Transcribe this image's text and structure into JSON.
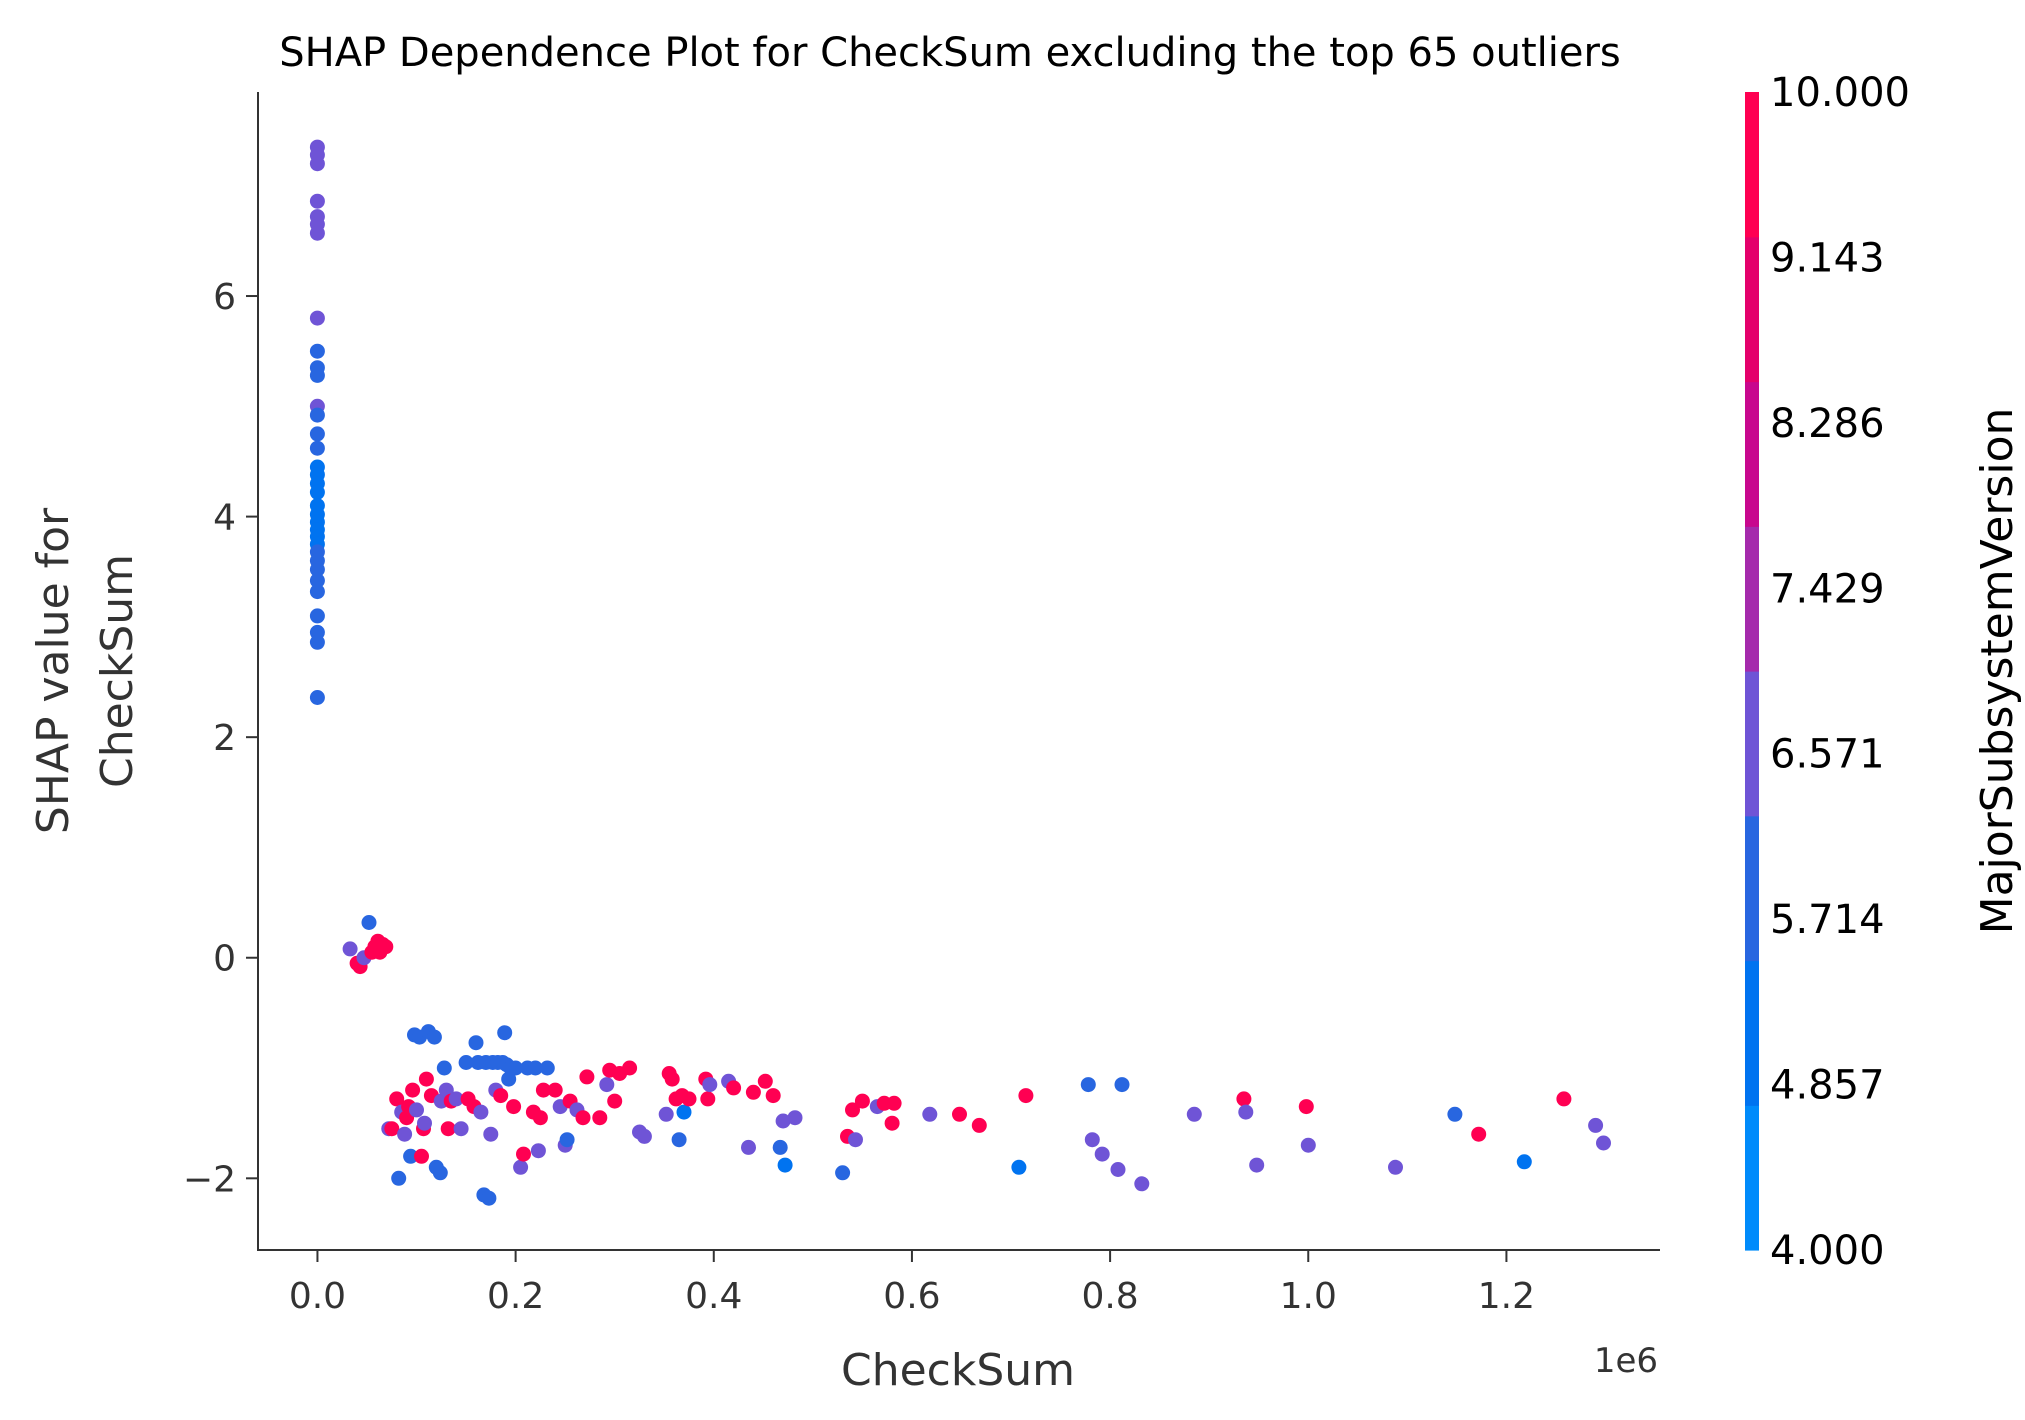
{
  "chart_data": {
    "type": "scatter",
    "title": "SHAP Dependence Plot for CheckSum excluding the top 65 outliers",
    "xlabel": "CheckSum",
    "ylabel_lines": [
      "SHAP value for",
      "CheckSum"
    ],
    "x_offset_label": "1e6",
    "x_scale": 1000000,
    "xlim": [
      -60000,
      1355000
    ],
    "ylim": [
      -2.65,
      7.85
    ],
    "xticks": [
      0.0,
      0.2,
      0.4,
      0.6,
      0.8,
      1.0,
      1.2
    ],
    "xtick_labels": [
      "0.0",
      "0.2",
      "0.4",
      "0.6",
      "0.8",
      "1.0",
      "1.2"
    ],
    "yticks": [
      -2,
      0,
      2,
      4,
      6
    ],
    "ytick_labels": [
      "−2",
      "0",
      "2",
      "4",
      "6"
    ],
    "grid": false,
    "colorbar": {
      "title": "MajorSubsystemVersion",
      "min": 4.0,
      "max": 10.0,
      "ticks": [
        "4.000",
        "4.857",
        "5.714",
        "6.571",
        "7.429",
        "8.286",
        "9.143",
        "10.000"
      ],
      "colors": [
        "#008bfb",
        "#0073f0",
        "#2866e0",
        "#6f54d6",
        "#a52aac",
        "#c8078e",
        "#e4006b",
        "#ff0052"
      ]
    },
    "points": [
      [
        0,
        7.35,
        6.57
      ],
      [
        0,
        7.28,
        6.57
      ],
      [
        0,
        7.2,
        6.57
      ],
      [
        0,
        6.86,
        6.57
      ],
      [
        0,
        6.72,
        6.57
      ],
      [
        0,
        6.65,
        6.57
      ],
      [
        0,
        6.57,
        6.57
      ],
      [
        0,
        5.8,
        6.57
      ],
      [
        0,
        5.5,
        5.71
      ],
      [
        0,
        5.35,
        5.71
      ],
      [
        0,
        5.28,
        5.71
      ],
      [
        0,
        5.0,
        6.57
      ],
      [
        0,
        4.92,
        5.71
      ],
      [
        0,
        4.75,
        5.71
      ],
      [
        0,
        4.62,
        5.71
      ],
      [
        0,
        4.45,
        4.86
      ],
      [
        0,
        4.38,
        4.86
      ],
      [
        0,
        4.3,
        4.86
      ],
      [
        0,
        4.22,
        4.86
      ],
      [
        0,
        4.1,
        4.86
      ],
      [
        0,
        4.02,
        4.86
      ],
      [
        0,
        3.95,
        4.86
      ],
      [
        0,
        3.88,
        4.86
      ],
      [
        0,
        3.82,
        4.86
      ],
      [
        0,
        3.75,
        4.86
      ],
      [
        0,
        3.68,
        5.71
      ],
      [
        0,
        3.6,
        5.71
      ],
      [
        0,
        3.52,
        5.71
      ],
      [
        0,
        3.42,
        5.71
      ],
      [
        0,
        3.32,
        5.71
      ],
      [
        0,
        3.1,
        5.71
      ],
      [
        0,
        2.95,
        5.71
      ],
      [
        0,
        2.86,
        5.71
      ],
      [
        0,
        2.36,
        5.71
      ],
      [
        33000,
        0.08,
        6.57
      ],
      [
        40000,
        -0.05,
        10
      ],
      [
        43000,
        -0.08,
        10
      ],
      [
        47000,
        0.0,
        6.57
      ],
      [
        52000,
        0.32,
        5.71
      ],
      [
        55000,
        0.05,
        10
      ],
      [
        58000,
        0.1,
        10
      ],
      [
        61000,
        0.15,
        10
      ],
      [
        63000,
        0.05,
        10
      ],
      [
        66000,
        0.12,
        10
      ],
      [
        69000,
        0.1,
        10
      ],
      [
        72000,
        -1.55,
        6.57
      ],
      [
        75000,
        -1.55,
        10
      ],
      [
        80000,
        -1.28,
        10
      ],
      [
        82000,
        -2.0,
        5.71
      ],
      [
        85000,
        -1.4,
        6.57
      ],
      [
        88000,
        -1.6,
        6.57
      ],
      [
        90000,
        -1.45,
        10
      ],
      [
        92000,
        -1.35,
        10
      ],
      [
        94000,
        -1.8,
        5.71
      ],
      [
        96000,
        -1.2,
        10
      ],
      [
        98000,
        -0.7,
        5.71
      ],
      [
        100000,
        -1.38,
        6.57
      ],
      [
        103000,
        -0.72,
        5.71
      ],
      [
        105000,
        -1.8,
        10
      ],
      [
        107000,
        -1.55,
        10
      ],
      [
        108000,
        -1.5,
        6.57
      ],
      [
        110000,
        -1.1,
        10
      ],
      [
        112000,
        -0.67,
        5.71
      ],
      [
        115000,
        -1.25,
        10
      ],
      [
        118000,
        -0.72,
        5.71
      ],
      [
        120000,
        -1.9,
        5.71
      ],
      [
        124000,
        -1.95,
        5.71
      ],
      [
        125000,
        -1.3,
        6.57
      ],
      [
        128000,
        -1.0,
        5.71
      ],
      [
        130000,
        -1.2,
        6.57
      ],
      [
        132000,
        -1.55,
        10
      ],
      [
        135000,
        -1.3,
        10
      ],
      [
        140000,
        -1.28,
        6.57
      ],
      [
        145000,
        -1.55,
        6.57
      ],
      [
        150000,
        -0.95,
        5.71
      ],
      [
        152000,
        -1.28,
        10
      ],
      [
        158000,
        -1.35,
        10
      ],
      [
        160000,
        -0.77,
        5.71
      ],
      [
        162000,
        -0.95,
        5.71
      ],
      [
        165000,
        -1.4,
        6.57
      ],
      [
        168000,
        -2.15,
        5.71
      ],
      [
        170000,
        -0.95,
        5.71
      ],
      [
        173000,
        -2.18,
        5.71
      ],
      [
        175000,
        -1.6,
        6.57
      ],
      [
        177000,
        -0.95,
        5.71
      ],
      [
        180000,
        -1.2,
        6.57
      ],
      [
        182000,
        -0.95,
        5.71
      ],
      [
        185000,
        -1.25,
        10
      ],
      [
        187000,
        -0.95,
        5.71
      ],
      [
        189000,
        -0.68,
        5.71
      ],
      [
        191000,
        -0.97,
        5.71
      ],
      [
        193000,
        -1.1,
        5.71
      ],
      [
        195000,
        -1.0,
        5.71
      ],
      [
        198000,
        -1.35,
        10
      ],
      [
        200000,
        -1.0,
        5.71
      ],
      [
        205000,
        -1.9,
        6.57
      ],
      [
        208000,
        -1.78,
        10
      ],
      [
        212000,
        -1.0,
        5.71
      ],
      [
        218000,
        -1.4,
        10
      ],
      [
        220000,
        -1.0,
        5.71
      ],
      [
        223000,
        -1.75,
        6.57
      ],
      [
        225000,
        -1.45,
        10
      ],
      [
        228000,
        -1.2,
        10
      ],
      [
        232000,
        -1.0,
        5.71
      ],
      [
        240000,
        -1.2,
        10
      ],
      [
        245000,
        -1.35,
        6.57
      ],
      [
        250000,
        -1.7,
        6.57
      ],
      [
        252000,
        -1.65,
        5.71
      ],
      [
        255000,
        -1.3,
        10
      ],
      [
        262000,
        -1.38,
        6.57
      ],
      [
        268000,
        -1.45,
        10
      ],
      [
        272000,
        -1.08,
        10
      ],
      [
        285000,
        -1.45,
        10
      ],
      [
        292000,
        -1.15,
        6.57
      ],
      [
        295000,
        -1.02,
        10
      ],
      [
        300000,
        -1.3,
        10
      ],
      [
        305000,
        -1.05,
        10
      ],
      [
        315000,
        -1.0,
        10
      ],
      [
        325000,
        -1.58,
        6.57
      ],
      [
        330000,
        -1.62,
        6.57
      ],
      [
        352000,
        -1.42,
        6.57
      ],
      [
        355000,
        -1.05,
        10
      ],
      [
        358000,
        -1.1,
        10
      ],
      [
        362000,
        -1.28,
        10
      ],
      [
        365000,
        -1.65,
        5.71
      ],
      [
        368000,
        -1.25,
        10
      ],
      [
        370000,
        -1.4,
        4.86
      ],
      [
        375000,
        -1.28,
        10
      ],
      [
        392000,
        -1.1,
        10
      ],
      [
        394000,
        -1.28,
        10
      ],
      [
        396000,
        -1.15,
        6.57
      ],
      [
        415000,
        -1.12,
        6.57
      ],
      [
        420000,
        -1.18,
        10
      ],
      [
        435000,
        -1.72,
        6.57
      ],
      [
        440000,
        -1.22,
        10
      ],
      [
        452000,
        -1.12,
        10
      ],
      [
        460000,
        -1.25,
        10
      ],
      [
        467000,
        -1.72,
        5.71
      ],
      [
        470000,
        -1.48,
        6.57
      ],
      [
        472000,
        -1.88,
        4.86
      ],
      [
        482000,
        -1.45,
        6.57
      ],
      [
        530000,
        -1.95,
        5.71
      ],
      [
        535000,
        -1.62,
        10
      ],
      [
        540000,
        -1.38,
        10
      ],
      [
        543000,
        -1.65,
        6.57
      ],
      [
        550000,
        -1.3,
        10
      ],
      [
        565000,
        -1.35,
        6.57
      ],
      [
        572000,
        -1.32,
        10
      ],
      [
        580000,
        -1.5,
        10
      ],
      [
        582000,
        -1.32,
        10
      ],
      [
        618000,
        -1.42,
        6.57
      ],
      [
        648000,
        -1.42,
        10
      ],
      [
        668000,
        -1.52,
        10
      ],
      [
        708000,
        -1.9,
        4.86
      ],
      [
        715000,
        -1.25,
        10
      ],
      [
        778000,
        -1.15,
        5.71
      ],
      [
        782000,
        -1.65,
        6.57
      ],
      [
        792000,
        -1.78,
        6.57
      ],
      [
        808000,
        -1.92,
        6.57
      ],
      [
        812000,
        -1.15,
        5.71
      ],
      [
        832000,
        -2.05,
        6.57
      ],
      [
        885000,
        -1.42,
        6.57
      ],
      [
        935000,
        -1.28,
        10
      ],
      [
        937000,
        -1.4,
        6.57
      ],
      [
        948000,
        -1.88,
        6.57
      ],
      [
        998000,
        -1.35,
        10
      ],
      [
        1000000,
        -1.7,
        6.57
      ],
      [
        1088000,
        -1.9,
        6.57
      ],
      [
        1148000,
        -1.42,
        5.71
      ],
      [
        1172000,
        -1.6,
        10
      ],
      [
        1218000,
        -1.85,
        4.86
      ],
      [
        1258000,
        -1.28,
        10
      ],
      [
        1290000,
        -1.52,
        6.57
      ],
      [
        1298000,
        -1.68,
        6.57
      ]
    ]
  }
}
